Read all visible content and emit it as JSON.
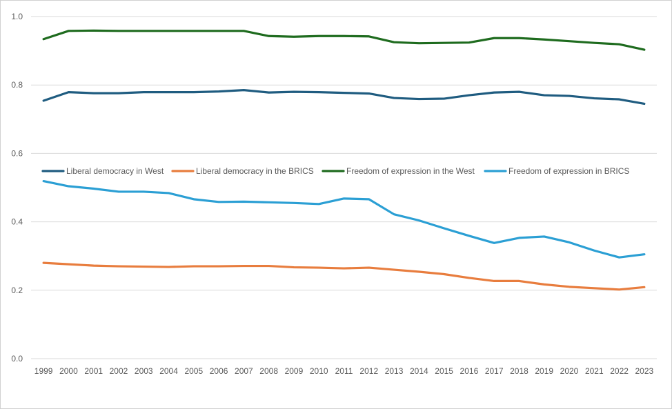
{
  "chart_data": {
    "type": "line",
    "title": "",
    "xlabel": "",
    "ylabel": "",
    "ylim": [
      0.0,
      1.0
    ],
    "yticks": [
      "0.0",
      "0.2",
      "0.4",
      "0.6",
      "0.8",
      "1.0"
    ],
    "grid": "horizontal",
    "legend_position": "middle-left",
    "categories": [
      "1999",
      "2000",
      "2001",
      "2002",
      "2003",
      "2004",
      "2005",
      "2006",
      "2007",
      "2008",
      "2009",
      "2010",
      "2011",
      "2012",
      "2013",
      "2014",
      "2015",
      "2016",
      "2017",
      "2018",
      "2019",
      "2020",
      "2021",
      "2022",
      "2023"
    ],
    "series": [
      {
        "name": "Liberal democracy in West",
        "color": "#1f5c80",
        "values": [
          0.754,
          0.779,
          0.776,
          0.776,
          0.779,
          0.779,
          0.779,
          0.781,
          0.785,
          0.778,
          0.78,
          0.779,
          0.777,
          0.775,
          0.762,
          0.759,
          0.76,
          0.77,
          0.778,
          0.78,
          0.77,
          0.768,
          0.761,
          0.758,
          0.745
        ]
      },
      {
        "name": "Liberal democracy in the BRICS",
        "color": "#e87d3e",
        "values": [
          0.28,
          0.276,
          0.272,
          0.27,
          0.269,
          0.268,
          0.27,
          0.27,
          0.271,
          0.271,
          0.267,
          0.266,
          0.264,
          0.266,
          0.26,
          0.254,
          0.247,
          0.236,
          0.227,
          0.227,
          0.217,
          0.21,
          0.206,
          0.202,
          0.209
        ]
      },
      {
        "name": "Freedom of expression in the West",
        "color": "#1e6b1e",
        "values": [
          0.934,
          0.958,
          0.959,
          0.958,
          0.958,
          0.958,
          0.958,
          0.958,
          0.958,
          0.943,
          0.941,
          0.943,
          0.943,
          0.942,
          0.925,
          0.922,
          0.923,
          0.924,
          0.937,
          0.937,
          0.933,
          0.928,
          0.923,
          0.919,
          0.903
        ]
      },
      {
        "name": "Freedom of expression in BRICS",
        "color": "#2b9fd4",
        "values": [
          0.519,
          0.504,
          0.497,
          0.488,
          0.488,
          0.484,
          0.466,
          0.458,
          0.459,
          0.457,
          0.455,
          0.452,
          0.468,
          0.466,
          0.422,
          0.404,
          0.381,
          0.359,
          0.338,
          0.353,
          0.357,
          0.34,
          0.316,
          0.296,
          0.305
        ]
      }
    ]
  }
}
